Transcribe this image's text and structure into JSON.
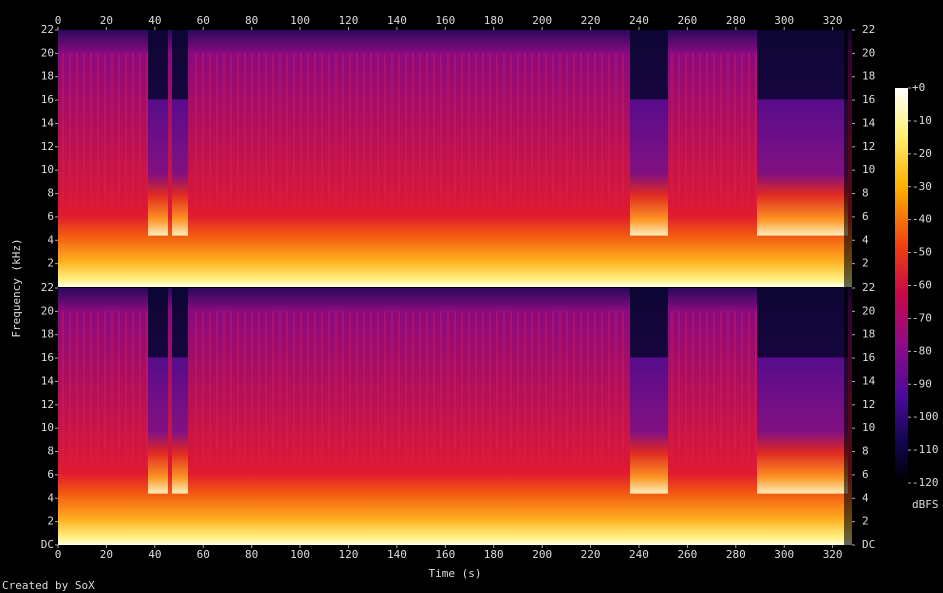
{
  "chart_data": {
    "type": "spectrogram",
    "x_label": "Time (s)",
    "y_label": "Frequency (kHz)",
    "xlim": [
      0,
      328
    ],
    "xticks": [
      0,
      20,
      40,
      60,
      80,
      100,
      120,
      140,
      160,
      180,
      200,
      220,
      240,
      260,
      280,
      300,
      320
    ],
    "ylim": [
      0,
      22
    ],
    "panels": [
      {
        "yticks": [
          2,
          4,
          6,
          8,
          10,
          12,
          14,
          16,
          18,
          20,
          22
        ]
      },
      {
        "yticks": [
          {
            "value": 0,
            "label": "DC"
          },
          2,
          4,
          6,
          8,
          10,
          12,
          14,
          16,
          18,
          20,
          22
        ]
      }
    ],
    "colorbar": {
      "label": "dBFS",
      "lim": [
        -120,
        0
      ],
      "ticks": [
        {
          "value": 0,
          "label": "+0"
        },
        -10,
        -20,
        -30,
        -40,
        -50,
        -60,
        -70,
        -80,
        -90,
        -100,
        -110,
        -120
      ]
    },
    "footer": "Created by SoX"
  }
}
